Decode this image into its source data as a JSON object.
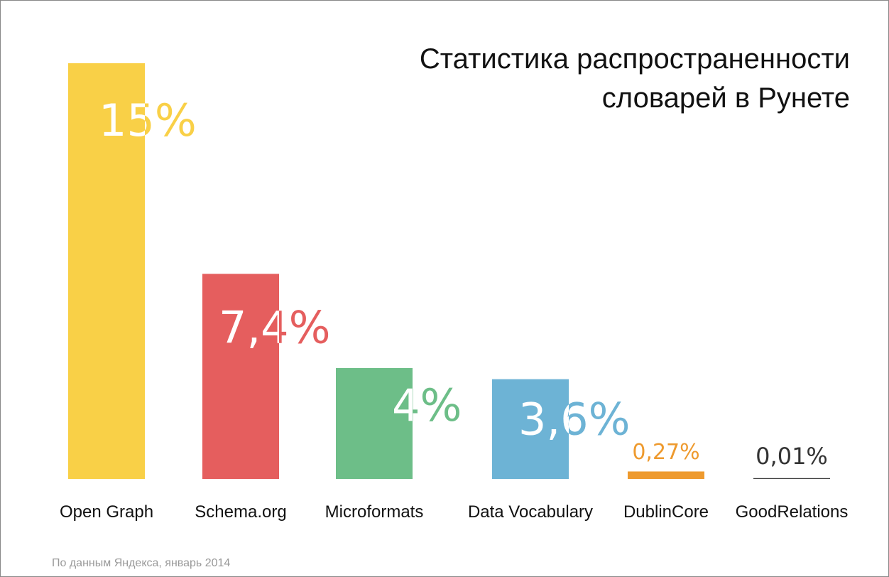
{
  "chart_data": {
    "type": "bar",
    "title_lines": [
      "Статистика распространенности",
      "словарей в Рунете"
    ],
    "categories": [
      "Open Graph",
      "Schema.org",
      "Microformats",
      "Data Vocabulary",
      "DublinCore",
      "GoodRelations"
    ],
    "values": [
      15,
      7.4,
      4,
      3.6,
      0.27,
      0.01
    ],
    "value_labels": [
      "15%",
      "7,4%",
      "4%",
      "3,6%",
      "0,27%",
      "0,01%"
    ],
    "colors": [
      "#F9D047",
      "#E55E5E",
      "#6DBE88",
      "#6DB3D5",
      "#EE9A2E",
      "#444444"
    ],
    "ylim": [
      0,
      15
    ],
    "grid": false,
    "xlabel": "",
    "ylabel": "",
    "footnote": "По данным Яндекса, январь 2014"
  }
}
